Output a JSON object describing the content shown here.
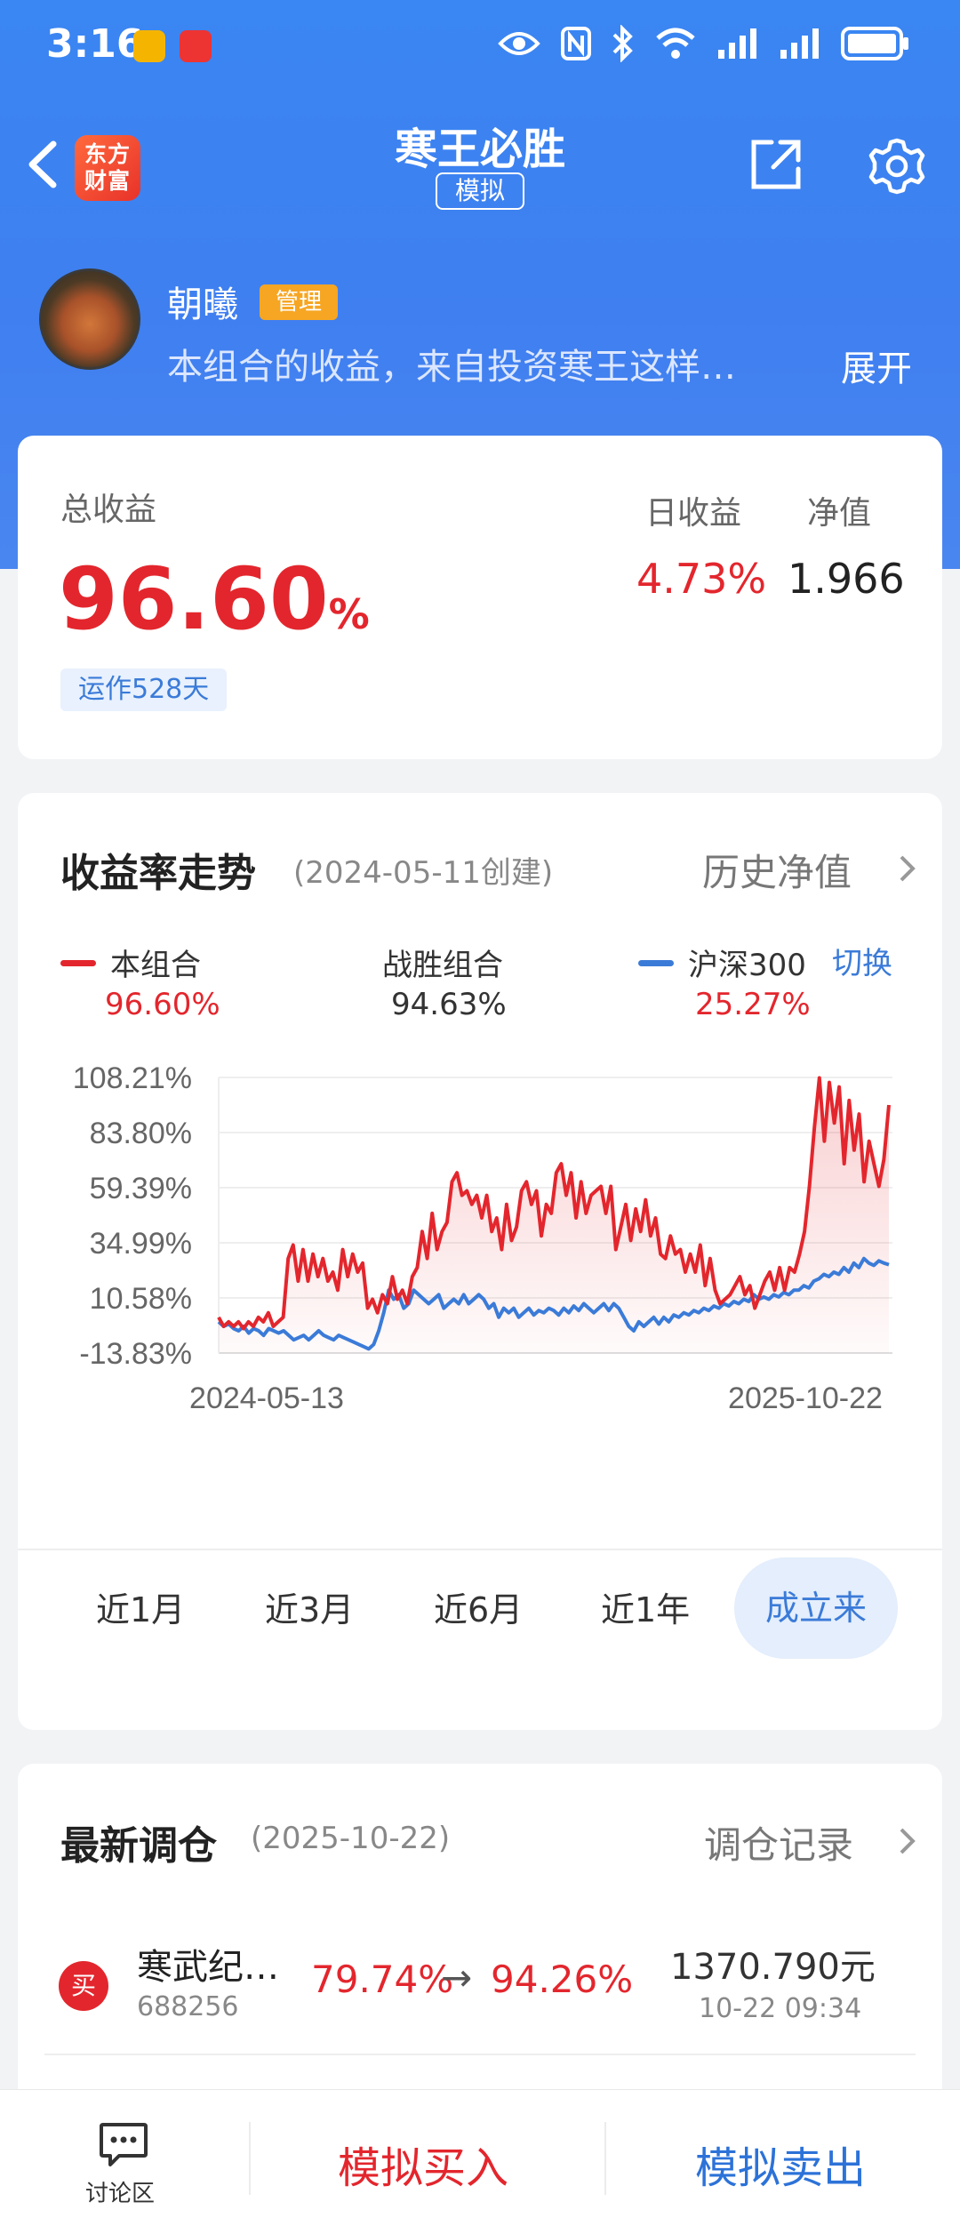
{
  "status_bar": {
    "time": "3:16"
  },
  "nav": {
    "logo_text": "东方财富",
    "title": "寒王必胜",
    "badge": "模拟"
  },
  "profile": {
    "name": "朝曦",
    "role": "管理",
    "description": "本组合的收益，来自投资寒王这样…",
    "expand": "展开"
  },
  "summary": {
    "total_label": "总收益",
    "total_value": "96.60",
    "total_unit": "%",
    "days": "运作528天",
    "daily_label": "日收益",
    "daily_value": "4.73%",
    "nav_label": "净值",
    "nav_value": "1.966"
  },
  "trend": {
    "title": "收益率走势",
    "created": "(2024-05-11创建)",
    "history": "历史净值",
    "switch": "切换",
    "legend": [
      {
        "name": "本组合",
        "value": "96.60%",
        "color": "#e3262d"
      },
      {
        "name": "战胜组合",
        "value": "94.63%"
      },
      {
        "name": "沪深300",
        "value": "25.27%",
        "color": "#3b7bd8"
      }
    ],
    "periods": [
      "近1月",
      "近3月",
      "近6月",
      "近1年",
      "成立来"
    ],
    "active_period": "成立来"
  },
  "chart_data": {
    "type": "line",
    "x_start": "2024-05-13",
    "x_end": "2025-10-22",
    "y_ticks": [
      "108.21%",
      "83.80%",
      "59.39%",
      "34.99%",
      "10.58%",
      "-13.83%"
    ],
    "ylim": [
      -13.83,
      108.21
    ],
    "series": [
      {
        "name": "本组合",
        "color": "#e3262d",
        "values": [
          2,
          -2,
          0,
          -2,
          0,
          -3,
          0,
          -2,
          2,
          0,
          4,
          -2,
          0,
          2,
          28,
          34,
          18,
          32,
          18,
          30,
          20,
          28,
          18,
          22,
          14,
          32,
          20,
          30,
          22,
          26,
          6,
          10,
          4,
          12,
          8,
          20,
          10,
          14,
          8,
          20,
          24,
          40,
          28,
          48,
          32,
          40,
          44,
          62,
          66,
          56,
          58,
          52,
          56,
          46,
          56,
          40,
          46,
          32,
          52,
          36,
          42,
          58,
          62,
          52,
          58,
          38,
          52,
          48,
          66,
          70,
          56,
          66,
          46,
          62,
          48,
          56,
          58,
          60,
          48,
          60,
          32,
          42,
          52,
          36,
          50,
          40,
          54,
          38,
          46,
          30,
          28,
          38,
          30,
          32,
          22,
          30,
          22,
          34,
          16,
          28,
          14,
          8,
          10,
          12,
          16,
          20,
          12,
          16,
          6,
          12,
          18,
          22,
          14,
          24,
          14,
          24,
          22,
          30,
          40,
          60,
          86,
          108,
          80,
          106,
          88,
          104,
          70,
          98,
          76,
          92,
          62,
          80,
          70,
          60,
          72,
          96
        ],
        "last": 96.6
      },
      {
        "name": "沪深300",
        "color": "#3b7bd8",
        "values": [
          0,
          -2,
          -1,
          -3,
          -4,
          -2,
          -5,
          -3,
          -4,
          -6,
          -3,
          -4,
          -5,
          -4,
          -6,
          -8,
          -7,
          -6,
          -8,
          -6,
          -4,
          -6,
          -7,
          -8,
          -6,
          -7,
          -8,
          -9,
          -10,
          -11,
          -12,
          -10,
          -4,
          4,
          14,
          10,
          12,
          6,
          8,
          14,
          12,
          10,
          8,
          10,
          12,
          6,
          8,
          10,
          8,
          12,
          8,
          10,
          12,
          10,
          6,
          8,
          2,
          6,
          4,
          6,
          2,
          4,
          6,
          3,
          5,
          4,
          6,
          5,
          3,
          6,
          4,
          7,
          5,
          8,
          6,
          4,
          6,
          8,
          5,
          8,
          6,
          2,
          -2,
          -4,
          0,
          -2,
          0,
          2,
          -1,
          2,
          0,
          3,
          2,
          4,
          3,
          5,
          4,
          6,
          5,
          7,
          6,
          8,
          7,
          9,
          8,
          10,
          9,
          12,
          10,
          11,
          10,
          12,
          11,
          13,
          12,
          14,
          14,
          16,
          15,
          18,
          19,
          21,
          20,
          22,
          21,
          24,
          22,
          26,
          24,
          28,
          26,
          25,
          27,
          26,
          25.3
        ],
        "last": 25.27
      }
    ]
  },
  "rebalance": {
    "title": "最新调仓",
    "date": "(2025-10-22)",
    "record": "调仓记录",
    "item": {
      "action": "买",
      "name": "寒武纪…",
      "code": "688256",
      "from": "79.74%",
      "arrow": "→",
      "to": "94.26%",
      "amount": "1370.790元",
      "time": "10-22  09:34"
    }
  },
  "bottom_bar": {
    "discuss": "讨论区",
    "buy": "模拟买入",
    "sell": "模拟卖出"
  }
}
